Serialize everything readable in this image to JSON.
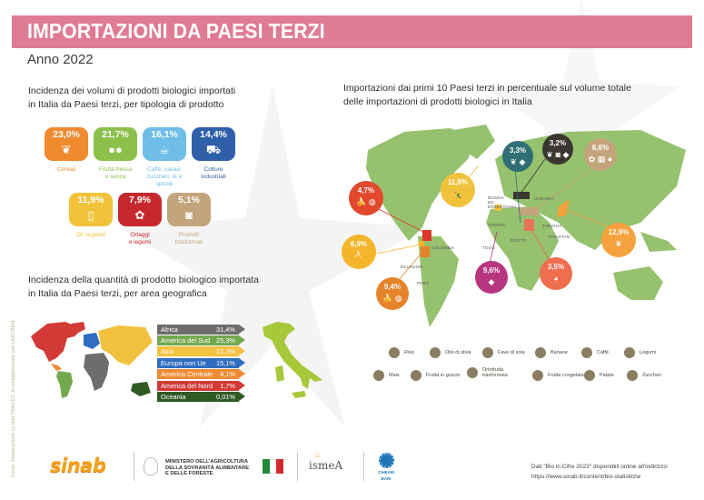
{
  "header": {
    "title": "IMPORTAZIONI DA PAESI TERZI",
    "subtitle": "Anno 2022",
    "band_color": "#df7b93"
  },
  "products_section": {
    "title_line1": "Incidenza dei volumi di prodotti biologici importati",
    "title_line2": "in Italia da Paesi terzi, per tipologia di prodotto",
    "items": [
      {
        "label": "Cereali",
        "label2": "",
        "pct": "23,0%",
        "color": "#ef8a2f",
        "icon": "wheat-icon"
      },
      {
        "label": "Frutta fresca",
        "label2": "e secca",
        "pct": "21,7%",
        "color": "#8cc04b",
        "icon": "fruit-icon"
      },
      {
        "label": "Caffè, cacao,",
        "label2": "zuccheri, tè e spezie",
        "pct": "16,1%",
        "color": "#6ebee8",
        "icon": "coffee-icon"
      },
      {
        "label": "Colture",
        "label2": "industriali",
        "pct": "14,4%",
        "color": "#2f5fa9",
        "icon": "tractor-icon"
      },
      {
        "label": "Oli vegetali",
        "label2": "",
        "pct": "11,9%",
        "color": "#f1c33c",
        "icon": "oil-bottle-icon"
      },
      {
        "label": "Ortaggi",
        "label2": "e legumi",
        "pct": "7,9%",
        "color": "#c6282f",
        "icon": "legume-icon"
      },
      {
        "label": "Prodotti",
        "label2": "trasformati",
        "pct": "5,1%",
        "color": "#c3a47c",
        "icon": "jar-icon"
      }
    ]
  },
  "geo_section": {
    "title_line1": "Incidenza della quantità di prodotto biologico importata",
    "title_line2": "in Italia da Paesi terzi, per area geografica",
    "areas": [
      {
        "name": "Africa",
        "pct": "31,4%",
        "color": "#6d6d6d"
      },
      {
        "name": "America del Sud",
        "pct": "25,3%",
        "color": "#74a84e"
      },
      {
        "name": "Asia",
        "pct": "22,3%",
        "color": "#f2c13f"
      },
      {
        "name": "Europa non Ue",
        "pct": "15,1%",
        "color": "#2f6dc0"
      },
      {
        "name": "America Centrale",
        "pct": "4,1%",
        "color": "#ee8c36"
      },
      {
        "name": "America del Nord",
        "pct": "1,7%",
        "color": "#d23a36"
      },
      {
        "name": "Oceania",
        "pct": "0,01%",
        "color": "#2f5a24"
      }
    ]
  },
  "map_section": {
    "title_line1": "Importazioni dai primi 10 Paesi terzi in percentuale sul volume totale",
    "title_line2": "delle importazioni di prodotti biologici in Italia",
    "country_labels": [
      "BOSNIA ED ERZEGOVINA",
      "UCRAINA",
      "TUNISIA",
      "TURCHIA",
      "EGITTO",
      "PAKISTAN",
      "COLOMBIA",
      "ECUADOR",
      "PERÙ",
      "TOGO"
    ],
    "bubbles": [
      {
        "pct": "4,7%",
        "color": "#e2482c",
        "icons": "banana, coffee"
      },
      {
        "pct": "11,9%",
        "color": "#f1c33c",
        "icons": "olive-oil"
      },
      {
        "pct": "3,3%",
        "color": "#2f6f73",
        "icons": "corn, soy"
      },
      {
        "pct": "3,2%",
        "color": "#3a3630",
        "icons": "corn, frozen-fruit, soy"
      },
      {
        "pct": "6,6%",
        "color": "#c3a47c",
        "icons": "legumes, processed, nuts"
      },
      {
        "pct": "6,9%",
        "color": "#f5b52b",
        "icons": "banana"
      },
      {
        "pct": "9,4%",
        "color": "#e5832a",
        "icons": "banana, coffee"
      },
      {
        "pct": "9,6%",
        "color": "#b8367f",
        "icons": "soy"
      },
      {
        "pct": "3,5%",
        "color": "#ee6e4f",
        "icons": "potato"
      },
      {
        "pct": "12,9%",
        "color": "#f5a13d",
        "icons": "rice"
      }
    ],
    "legend": [
      {
        "label": "Riso",
        "icon": "rice-icon"
      },
      {
        "label": "Olio di oliva",
        "icon": "olive-oil-icon"
      },
      {
        "label": "Fave di soia",
        "icon": "soybean-icon"
      },
      {
        "label": "Banane",
        "icon": "banana-icon"
      },
      {
        "label": "Caffè",
        "icon": "coffee-bean-icon"
      },
      {
        "label": "Legumi",
        "icon": "legume-icon"
      },
      {
        "label": "Mais",
        "icon": "corn-icon"
      },
      {
        "label": "Frutta in guscio",
        "icon": "nut-icon"
      },
      {
        "label": "Ortofrutta trasformata",
        "icon": "processed-produce-icon"
      },
      {
        "label": "Frutta congelata",
        "icon": "frozen-fruit-icon"
      },
      {
        "label": "Patate",
        "icon": "potato-icon"
      },
      {
        "label": "Zuccheri",
        "icon": "sugar-icon"
      }
    ]
  },
  "side_note": "Fonte: Elaborazione su dati TRACES, in collaborazione con UNICREM",
  "footer": {
    "note_line1": "Dati \"Bio in Cifre 2023\" disponibili online all'indirizzo:",
    "note_line2": "https://www.sinab.it/content/bio-statistiche",
    "logo_sinab": "sinab",
    "ministry_line1": "MINISTERO DELL'AGRICOLTURA",
    "ministry_line2": "DELLA SOVRANITÀ ALIMENTARE",
    "ministry_line3": "E DELLE FORESTE",
    "logo_ismea": "ismeA",
    "logo_ciheam": "CIHEAM",
    "logo_ciheam_sub": "BARI"
  },
  "chart_data": [
    {
      "type": "bar",
      "title": "Incidenza dei volumi di prodotti biologici importati in Italia da Paesi terzi, per tipologia di prodotto",
      "categories": [
        "Cereali",
        "Frutta fresca e secca",
        "Caffè, cacao, zuccheri, tè e spezie",
        "Colture industriali",
        "Oli vegetali",
        "Ortaggi e legumi",
        "Prodotti trasformati"
      ],
      "values": [
        23.0,
        21.7,
        16.1,
        14.4,
        11.9,
        7.9,
        5.1
      ],
      "unit": "%"
    },
    {
      "type": "bar",
      "title": "Incidenza della quantità di prodotto biologico importata in Italia da Paesi terzi, per area geografica",
      "categories": [
        "Africa",
        "America del Sud",
        "Asia",
        "Europa non Ue",
        "America Centrale",
        "America del Nord",
        "Oceania"
      ],
      "values": [
        31.4,
        25.3,
        22.3,
        15.1,
        4.1,
        1.7,
        0.01
      ],
      "unit": "%"
    },
    {
      "type": "table",
      "title": "Importazioni dai primi 10 Paesi terzi in percentuale sul volume totale delle importazioni di prodotti biologici in Italia",
      "values_pct": [
        4.7,
        11.9,
        3.3,
        3.2,
        6.6,
        6.9,
        9.4,
        9.6,
        3.5,
        12.9
      ],
      "countries_shown": [
        "Bosnia ed Erzegovina",
        "Ucraina",
        "Tunisia",
        "Turchia",
        "Egitto",
        "Pakistan",
        "Colombia",
        "Ecuador",
        "Perù",
        "Togo"
      ]
    }
  ]
}
